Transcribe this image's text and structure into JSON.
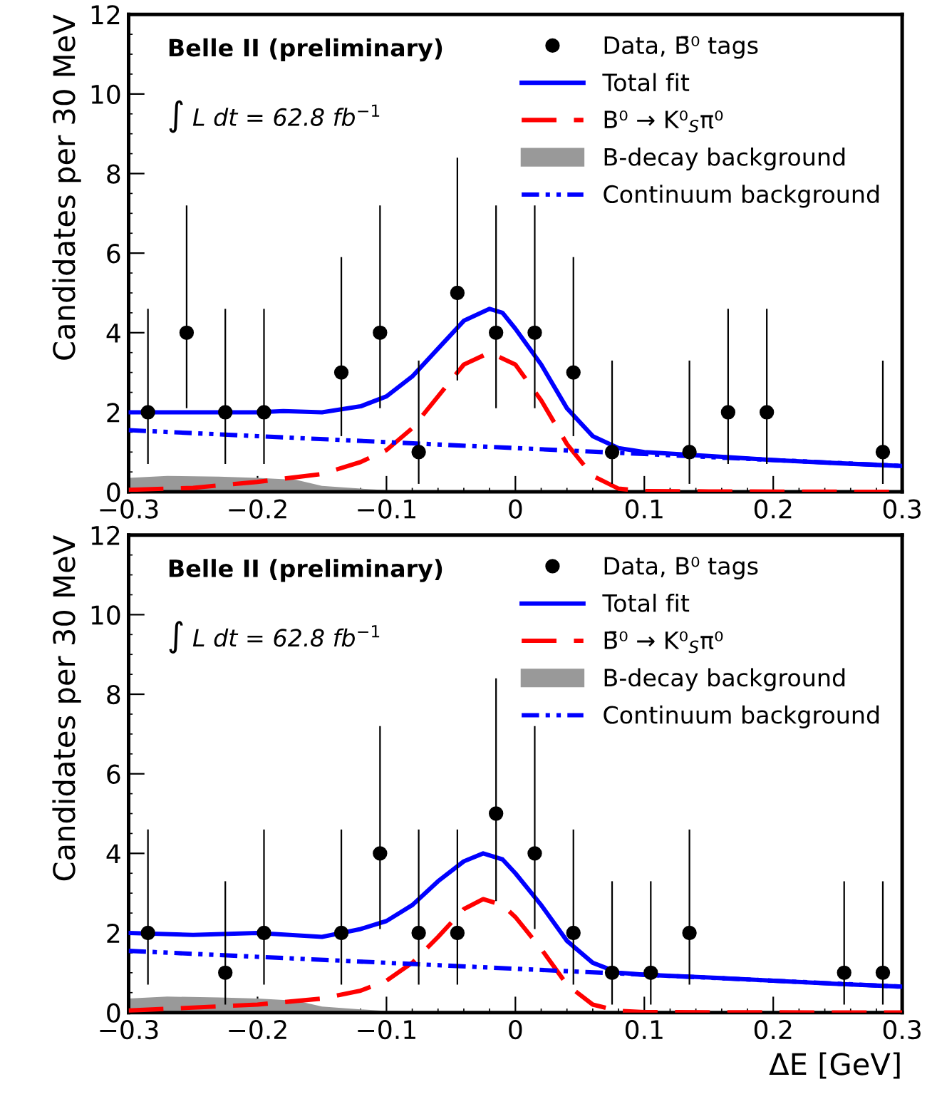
{
  "chart_data": [
    {
      "type": "scatter",
      "ylabel": "Candidates per 30 MeV",
      "annotations": [
        "Belle II (preliminary)",
        "∫ L dt = 62.8 fb$^{−1}$"
      ],
      "xlim": [
        -0.3,
        0.3
      ],
      "ylim": [
        0,
        12
      ],
      "xticks": [
        {
          "value": -0.3,
          "label": "−0.3"
        },
        {
          "value": -0.2,
          "label": "−0.2"
        },
        {
          "value": -0.1,
          "label": "−0.1"
        },
        0,
        0.1,
        0.2,
        0.3
      ],
      "yticks": [
        0,
        2,
        4,
        6,
        8,
        10,
        12
      ],
      "grid": false,
      "legend": "top right",
      "series": [
        {
          "name": "Data, B̄⁰ tags",
          "color": "#000000",
          "marker": "circle",
          "x": [
            -0.285,
            -0.255,
            -0.225,
            -0.195,
            -0.135,
            -0.105,
            -0.075,
            -0.045,
            -0.015,
            0.015,
            0.045,
            0.075,
            0.135,
            0.165,
            0.195,
            0.285
          ],
          "values": [
            2,
            4,
            2,
            2,
            3,
            4,
            1,
            5,
            4,
            4,
            3,
            1,
            1,
            2,
            2,
            1
          ],
          "errors": [
            [
              0.7,
              4.6
            ],
            [
              2.1,
              7.2
            ],
            [
              0.7,
              4.6
            ],
            [
              0.7,
              4.6
            ],
            [
              1.4,
              5.9
            ],
            [
              2.1,
              7.2
            ],
            [
              0.2,
              3.3
            ],
            [
              2.8,
              8.4
            ],
            [
              2.1,
              7.2
            ],
            [
              2.1,
              7.2
            ],
            [
              1.4,
              5.9
            ],
            [
              0.2,
              3.3
            ],
            [
              0.2,
              3.3
            ],
            [
              0.7,
              4.6
            ],
            [
              0.7,
              4.6
            ],
            [
              0.2,
              3.3
            ]
          ]
        },
        {
          "name": "Total fit",
          "type": "line",
          "color": "#0000ff",
          "line_style": "solid",
          "x": [
            -0.3,
            -0.28,
            -0.25,
            -0.2,
            -0.18,
            -0.15,
            -0.12,
            -0.1,
            -0.08,
            -0.06,
            -0.04,
            -0.02,
            -0.01,
            0,
            0.02,
            0.04,
            0.06,
            0.08,
            0.1,
            0.15,
            0.2,
            0.25,
            0.3
          ],
          "values": [
            2.0,
            2.0,
            2.0,
            2.0,
            2.03,
            2.0,
            2.15,
            2.4,
            2.9,
            3.6,
            4.3,
            4.6,
            4.5,
            4.1,
            3.2,
            2.1,
            1.4,
            1.1,
            1.0,
            0.9,
            0.8,
            0.72,
            0.65
          ]
        },
        {
          "name": "B⁰ → K⁰$_{S}$π⁰",
          "type": "line",
          "color": "#ff0000",
          "line_style": "dashed",
          "x": [
            -0.3,
            -0.25,
            -0.2,
            -0.15,
            -0.12,
            -0.1,
            -0.08,
            -0.06,
            -0.04,
            -0.02,
            0,
            0.02,
            0.04,
            0.06,
            0.08,
            0.1,
            0.15,
            0.3
          ],
          "values": [
            0.05,
            0.1,
            0.25,
            0.45,
            0.75,
            1.05,
            1.6,
            2.4,
            3.2,
            3.5,
            3.2,
            2.3,
            1.2,
            0.4,
            0.08,
            0.02,
            0.01,
            0
          ]
        },
        {
          "name": "B-decay background",
          "type": "area",
          "color": "#999999",
          "x": [
            -0.3,
            -0.27,
            -0.23,
            -0.2,
            -0.17,
            -0.15,
            -0.12,
            -0.1,
            -0.05,
            0,
            0.3
          ],
          "values": [
            0.35,
            0.4,
            0.38,
            0.35,
            0.3,
            0.15,
            0.08,
            0.04,
            0.02,
            0.01,
            0
          ]
        },
        {
          "name": "Continuum background",
          "type": "line",
          "color": "#0000ff",
          "line_style": "dotted",
          "x": [
            -0.3,
            -0.2,
            -0.1,
            0,
            0.1,
            0.2,
            0.3
          ],
          "values": [
            1.55,
            1.4,
            1.25,
            1.1,
            0.95,
            0.8,
            0.65
          ]
        }
      ]
    },
    {
      "type": "scatter",
      "ylabel": "Candidates per 30 MeV",
      "xlabel": "ΔE [GeV]",
      "annotations": [
        "Belle II (preliminary)",
        "∫ L dt = 62.8 fb$^{−1}$"
      ],
      "xlim": [
        -0.3,
        0.3
      ],
      "ylim": [
        0,
        12
      ],
      "xticks": [
        {
          "value": -0.3,
          "label": "−0.3"
        },
        {
          "value": -0.2,
          "label": "−0.2"
        },
        {
          "value": -0.1,
          "label": "−0.1"
        },
        0,
        0.1,
        0.2,
        0.3
      ],
      "yticks": [
        0,
        2,
        4,
        6,
        8,
        10,
        12
      ],
      "grid": false,
      "legend": "top right",
      "series": [
        {
          "name": "Data, B⁰ tags",
          "color": "#000000",
          "marker": "circle",
          "x": [
            -0.285,
            -0.225,
            -0.195,
            -0.135,
            -0.105,
            -0.075,
            -0.045,
            -0.015,
            0.015,
            0.045,
            0.075,
            0.105,
            0.135,
            0.255,
            0.285
          ],
          "values": [
            2,
            1,
            2,
            2,
            4,
            2,
            2,
            5,
            4,
            2,
            1,
            1,
            2,
            1,
            1
          ],
          "errors": [
            [
              0.7,
              4.6
            ],
            [
              0.2,
              3.3
            ],
            [
              0.7,
              4.6
            ],
            [
              0.7,
              4.6
            ],
            [
              2.1,
              7.2
            ],
            [
              0.7,
              4.6
            ],
            [
              0.7,
              4.6
            ],
            [
              2.8,
              8.4
            ],
            [
              2.1,
              7.2
            ],
            [
              0.7,
              4.6
            ],
            [
              0.2,
              3.3
            ],
            [
              0.2,
              3.3
            ],
            [
              0.7,
              4.6
            ],
            [
              0.2,
              3.3
            ],
            [
              0.2,
              3.3
            ]
          ]
        },
        {
          "name": "Total fit",
          "type": "line",
          "color": "#0000ff",
          "line_style": "solid",
          "x": [
            -0.3,
            -0.25,
            -0.2,
            -0.15,
            -0.12,
            -0.1,
            -0.08,
            -0.06,
            -0.04,
            -0.025,
            -0.01,
            0,
            0.02,
            0.04,
            0.06,
            0.08,
            0.1,
            0.15,
            0.2,
            0.25,
            0.3
          ],
          "values": [
            2.0,
            1.95,
            2.0,
            1.9,
            2.1,
            2.3,
            2.7,
            3.3,
            3.8,
            4.0,
            3.85,
            3.5,
            2.7,
            1.8,
            1.25,
            1.0,
            0.95,
            0.88,
            0.8,
            0.72,
            0.65
          ]
        },
        {
          "name": "B̄⁰ → K⁰$_{S}$π⁰",
          "type": "line",
          "color": "#ff0000",
          "line_style": "dashed",
          "x": [
            -0.3,
            -0.2,
            -0.15,
            -0.12,
            -0.1,
            -0.08,
            -0.06,
            -0.04,
            -0.025,
            -0.01,
            0,
            0.02,
            0.04,
            0.06,
            0.08,
            0.1,
            0.3
          ],
          "values": [
            0.05,
            0.2,
            0.35,
            0.55,
            0.8,
            1.25,
            1.9,
            2.6,
            2.85,
            2.7,
            2.4,
            1.6,
            0.7,
            0.2,
            0.04,
            0.01,
            0
          ]
        },
        {
          "name": "B-decay background",
          "type": "area",
          "color": "#999999",
          "x": [
            -0.3,
            -0.27,
            -0.23,
            -0.2,
            -0.17,
            -0.15,
            -0.12,
            -0.1,
            -0.05,
            0,
            0.3
          ],
          "values": [
            0.35,
            0.4,
            0.38,
            0.35,
            0.3,
            0.15,
            0.08,
            0.04,
            0.02,
            0.01,
            0
          ]
        },
        {
          "name": "Continuum background",
          "type": "line",
          "color": "#0000ff",
          "line_style": "dotted",
          "x": [
            -0.3,
            -0.2,
            -0.1,
            0,
            0.1,
            0.2,
            0.3
          ],
          "values": [
            1.55,
            1.4,
            1.25,
            1.1,
            0.95,
            0.8,
            0.65
          ]
        }
      ]
    }
  ]
}
